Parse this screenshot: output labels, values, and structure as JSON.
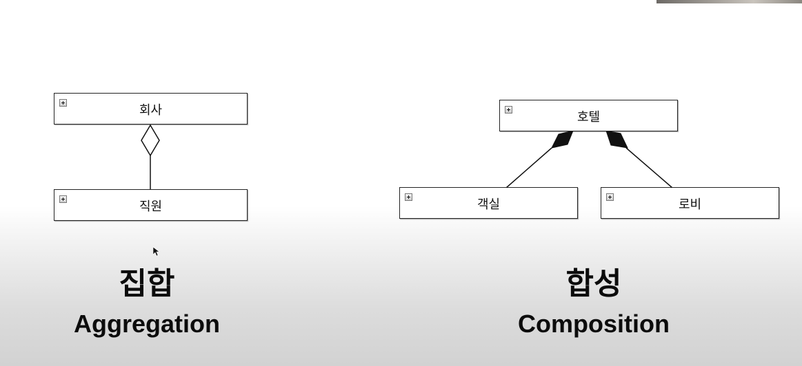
{
  "aggregation": {
    "whole": "회사",
    "part": "직원",
    "title_ko": "집합",
    "title_en": "Aggregation"
  },
  "composition": {
    "whole": "호텔",
    "parts": [
      "객실",
      "로비"
    ],
    "title_ko": "합성",
    "title_en": "Composition"
  },
  "icons": {
    "class_expand": "plus-icon",
    "aggregation_end": "hollow-diamond-icon",
    "composition_end": "filled-diamond-icon",
    "pointer": "mouse-cursor-icon"
  },
  "colors": {
    "line": "#111111",
    "box_border": "#222222",
    "background_bottom": "#d2d2d2"
  }
}
